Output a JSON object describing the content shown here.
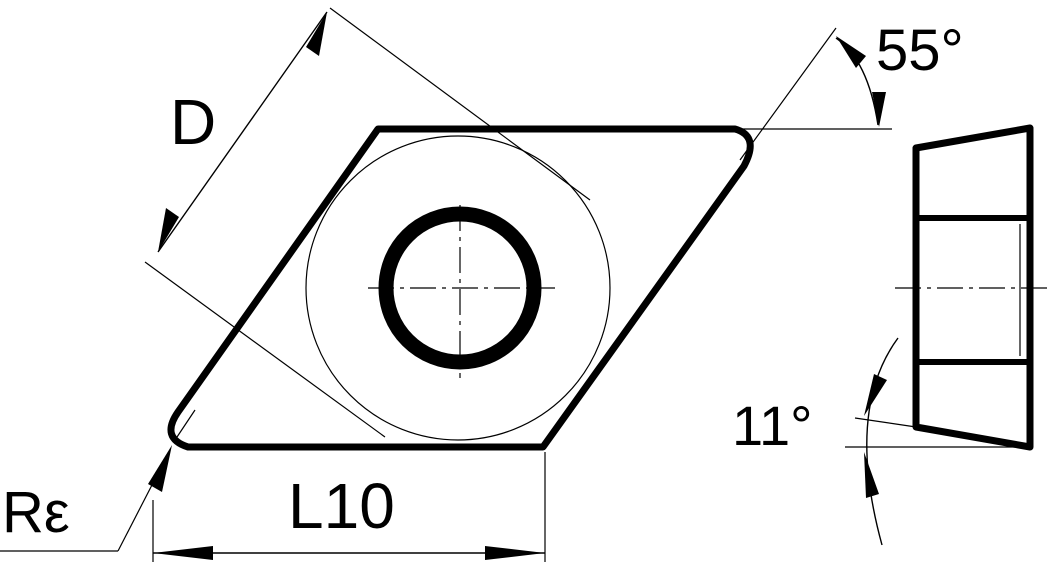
{
  "diagram": {
    "title": "Rhombic 55° cutting insert with central hole",
    "labels": {
      "inscribed_circle": "D",
      "nose_angle": "55°",
      "clearance_angle": "11°",
      "corner_radius": "Rε",
      "cutting_edge_length": "L10"
    },
    "colors": {
      "line": "#000000",
      "background": "#ffffff"
    }
  }
}
